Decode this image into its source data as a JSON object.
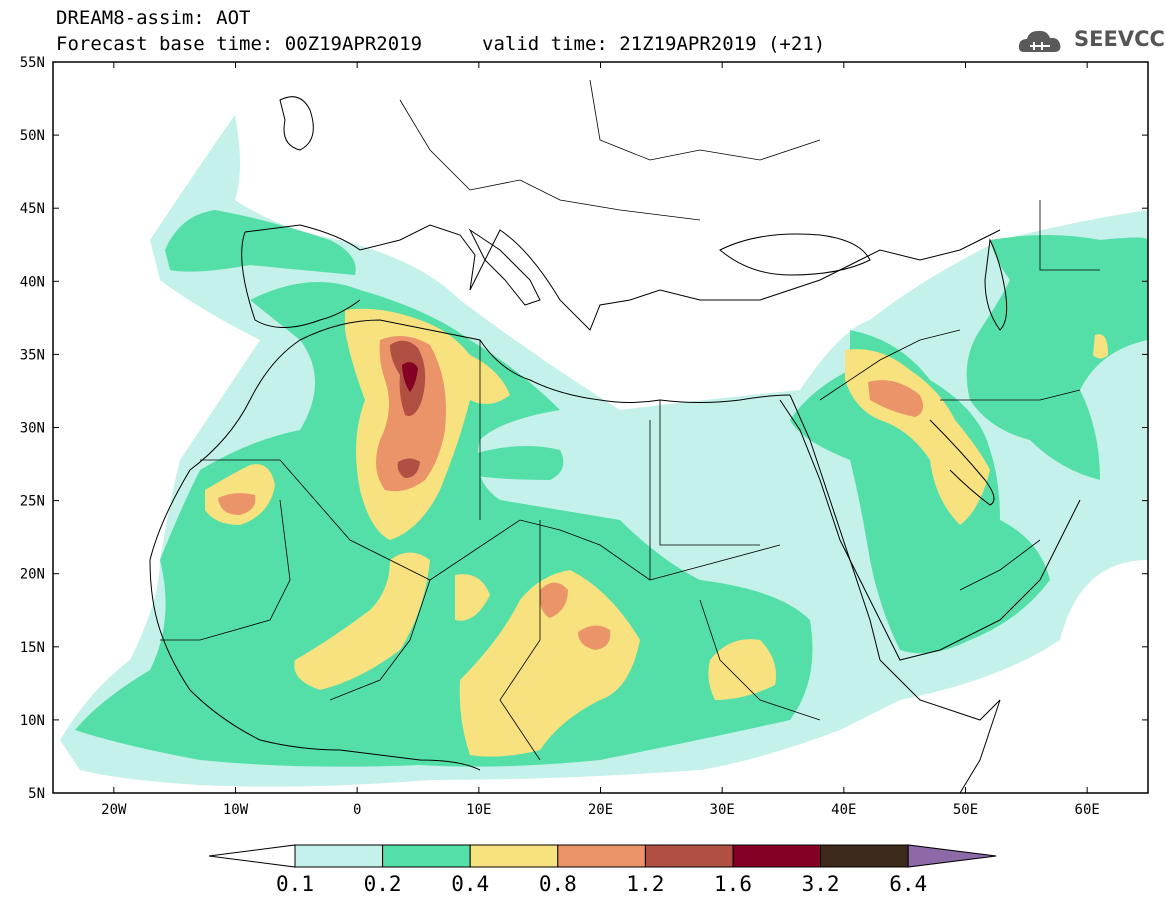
{
  "title": {
    "line1": "DREAM8-assim: AOT",
    "base_time": "Forecast base time: 00Z19APR2019",
    "valid_time": "valid time: 21Z19APR2019 (+21)"
  },
  "logo": {
    "text": "SEEVCCC",
    "icon": "cloud-icon"
  },
  "map": {
    "lat_labels": [
      "55N",
      "50N",
      "45N",
      "40N",
      "35N",
      "30N",
      "25N",
      "20N",
      "15N",
      "10N",
      "5N"
    ],
    "lon_labels": [
      "20W",
      "10W",
      "0",
      "10E",
      "20E",
      "30E",
      "40E",
      "50E",
      "60E"
    ],
    "lat_range": [
      5,
      55
    ],
    "lon_range": [
      -25,
      65
    ]
  },
  "colorbar": {
    "levels": [
      "0.1",
      "0.2",
      "0.4",
      "0.8",
      "1.2",
      "1.6",
      "3.2",
      "6.4"
    ],
    "colors": [
      "#ffffff",
      "#c4f1ea",
      "#55dfa8",
      "#f7e27f",
      "#eb9469",
      "#b24f43",
      "#850025",
      "#3e2a1c",
      "#8d6aa7"
    ]
  }
}
